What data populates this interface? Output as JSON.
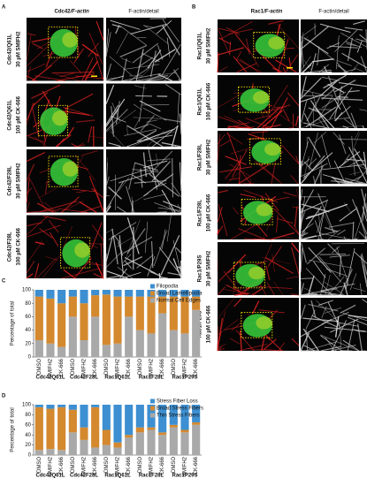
{
  "figure": {
    "panels": [
      {
        "letter": "A",
        "title_a": "Cdc42",
        "title_b": "/F-actin",
        "detail": "F-actin/detail",
        "rows": [
          [
            "Cdc42/Q61L",
            "30 µM SMIFH2"
          ],
          [
            "Cdc42/Q61L",
            "100 µM CK-666"
          ],
          [
            "Cdc42/F28L",
            "30 µM SMIFH2"
          ],
          [
            "Cdc42/F28L",
            "100 µM CK-666"
          ]
        ]
      },
      {
        "letter": "B",
        "title_a": "Rac1",
        "title_b": "/F-actin",
        "detail": "F-actin/detail",
        "rows": [
          [
            "Rac1/Q61L",
            "30 µM SMIFH2"
          ],
          [
            "Rac1/Q61L",
            "100 µM CK-666"
          ],
          [
            "Rac1/F28L",
            "30 µM SMIFH2"
          ],
          [
            "Rac1/F28L",
            "100 µM CK-666"
          ],
          [
            "Rac1/P29S",
            "30 µM SMIFH2"
          ],
          [
            "Rac1/P29S",
            "100 µM CK-666"
          ]
        ]
      }
    ]
  },
  "chart_data": [
    {
      "type": "stacked_bar",
      "panel_label": "C",
      "y_label": "Percentage of total",
      "categories": [
        "DMSO",
        "SMIFH2",
        "CK-666",
        "DMSO",
        "SMIFH2",
        "CK-666",
        "DMSO",
        "SMIFH2",
        "CK-666",
        "DMSO",
        "SMIFH2",
        "CK-666",
        "DMSO",
        "SMIFH2",
        "CK-666"
      ],
      "group_labels": [
        "Cdc42Q61L",
        "Cdc42F28L",
        "Rac1Q61L",
        "Rac1F28L",
        "Rac1P29S"
      ],
      "series": [
        {
          "name": "Filopodia",
          "color": "#3d8fd1",
          "values": [
            10,
            13,
            20,
            10,
            20,
            8,
            7,
            10,
            10,
            10,
            10,
            10,
            10,
            10,
            10
          ]
        },
        {
          "name": "Broad Lamellipodia",
          "color": "#d4892f",
          "values": [
            65,
            67,
            65,
            30,
            55,
            32,
            75,
            70,
            30,
            50,
            55,
            25,
            50,
            55,
            20
          ]
        },
        {
          "name": "Normal Cell Edges",
          "color": "#a9a9a9",
          "values": [
            25,
            20,
            15,
            60,
            25,
            60,
            18,
            20,
            60,
            40,
            35,
            65,
            40,
            35,
            70
          ]
        }
      ],
      "ylim": [
        0,
        100
      ],
      "yticks": [
        0,
        20,
        40,
        60,
        80,
        100
      ],
      "legend": "top-right"
    },
    {
      "type": "stacked_bar",
      "panel_label": "D",
      "y_label": "Percentage of total",
      "categories": [
        "DMSO",
        "SMIFH2",
        "CK-666",
        "DMSO",
        "SMIFH2",
        "CK-666",
        "DMSO",
        "SMIFH2",
        "CK-666",
        "DMSO",
        "SMIFH2",
        "CK-666",
        "DMSO",
        "SMIFH2",
        "CK-666"
      ],
      "group_labels": [
        "Cdc42Q61L",
        "Cdc42F28L",
        "Rac1Q61L",
        "Rac1F28L",
        "Rac1P29S"
      ],
      "series": [
        {
          "name": "Stress Fiber Loss",
          "color": "#3d8fd1",
          "values": [
            5,
            8,
            5,
            10,
            45,
            5,
            50,
            75,
            60,
            45,
            45,
            55,
            40,
            50,
            35
          ]
        },
        {
          "name": "Broad Stress Fibers",
          "color": "#d4892f",
          "values": [
            85,
            80,
            85,
            45,
            25,
            80,
            30,
            10,
            5,
            10,
            5,
            5,
            5,
            5,
            5
          ]
        },
        {
          "name": "Thin Stress Fibers",
          "color": "#a9a9a9",
          "values": [
            10,
            12,
            10,
            45,
            30,
            15,
            20,
            15,
            35,
            45,
            50,
            40,
            55,
            45,
            60
          ]
        }
      ],
      "ylim": [
        0,
        100
      ],
      "yticks": [
        0,
        20,
        40,
        60,
        80,
        100
      ],
      "legend": "top-right"
    }
  ]
}
